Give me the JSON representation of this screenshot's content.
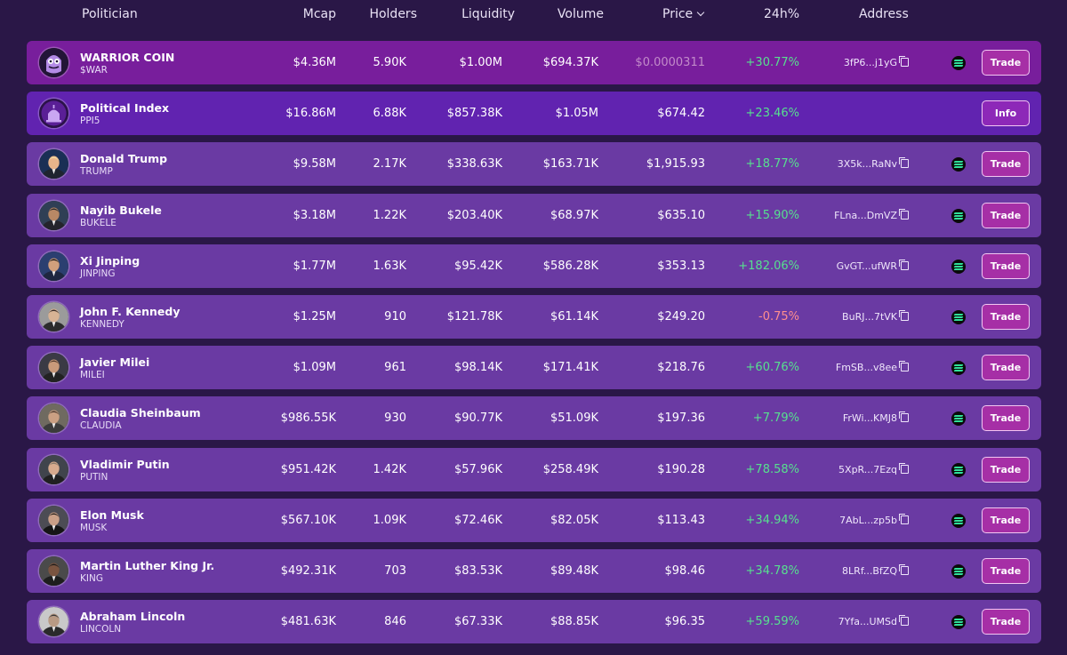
{
  "columns": {
    "politician": "Politician",
    "mcap": "Mcap",
    "holders": "Holders",
    "liquidity": "Liquidity",
    "volume": "Volume",
    "price": "Price",
    "change": "24h%",
    "address": "Address"
  },
  "rows": [
    {
      "name": "WARRIOR COIN",
      "ticker": "$WAR",
      "mcap": "$4.36M",
      "holders": "5.90K",
      "liquidity": "$1.00M",
      "volume": "$694.37K",
      "price": "$0.0000311",
      "change": "+30.77%",
      "address": "3fP6...j1yG",
      "action": "Trade",
      "avatar": "warrior-avatar"
    },
    {
      "name": "Political Index",
      "ticker": "PPI5",
      "mcap": "$16.86M",
      "holders": "6.88K",
      "liquidity": "$857.38K",
      "volume": "$1.05M",
      "price": "$674.42",
      "change": "+23.46%",
      "address": "",
      "action": "Info",
      "avatar": "capitol-avatar"
    },
    {
      "name": "Donald Trump",
      "ticker": "TRUMP",
      "mcap": "$9.58M",
      "holders": "2.17K",
      "liquidity": "$338.63K",
      "volume": "$163.71K",
      "price": "$1,915.93",
      "change": "+18.77%",
      "address": "3X5k...RaNv",
      "action": "Trade",
      "avatar": "portrait"
    },
    {
      "name": "Nayib Bukele",
      "ticker": "BUKELE",
      "mcap": "$3.18M",
      "holders": "1.22K",
      "liquidity": "$203.40K",
      "volume": "$68.97K",
      "price": "$635.10",
      "change": "+15.90%",
      "address": "FLna...DmVZ",
      "action": "Trade",
      "avatar": "portrait"
    },
    {
      "name": "Xi Jinping",
      "ticker": "JINPING",
      "mcap": "$1.77M",
      "holders": "1.63K",
      "liquidity": "$95.42K",
      "volume": "$586.28K",
      "price": "$353.13",
      "change": "+182.06%",
      "address": "GvGT...ufWR",
      "action": "Trade",
      "avatar": "portrait"
    },
    {
      "name": "John F. Kennedy",
      "ticker": "KENNEDY",
      "mcap": "$1.25M",
      "holders": "910",
      "liquidity": "$121.78K",
      "volume": "$61.14K",
      "price": "$249.20",
      "change": "-0.75%",
      "address": "BuRJ...7tVK",
      "action": "Trade",
      "avatar": "portrait"
    },
    {
      "name": "Javier Milei",
      "ticker": "MILEI",
      "mcap": "$1.09M",
      "holders": "961",
      "liquidity": "$98.14K",
      "volume": "$171.41K",
      "price": "$218.76",
      "change": "+60.76%",
      "address": "FmSB...v8ee",
      "action": "Trade",
      "avatar": "portrait"
    },
    {
      "name": "Claudia Sheinbaum",
      "ticker": "CLAUDIA",
      "mcap": "$986.55K",
      "holders": "930",
      "liquidity": "$90.77K",
      "volume": "$51.09K",
      "price": "$197.36",
      "change": "+7.79%",
      "address": "FrWi...KMJ8",
      "action": "Trade",
      "avatar": "portrait"
    },
    {
      "name": "Vladimir Putin",
      "ticker": "PUTIN",
      "mcap": "$951.42K",
      "holders": "1.42K",
      "liquidity": "$57.96K",
      "volume": "$258.49K",
      "price": "$190.28",
      "change": "+78.58%",
      "address": "5XpR...7Ezq",
      "action": "Trade",
      "avatar": "portrait"
    },
    {
      "name": "Elon Musk",
      "ticker": "MUSK",
      "mcap": "$567.10K",
      "holders": "1.09K",
      "liquidity": "$72.46K",
      "volume": "$82.05K",
      "price": "$113.43",
      "change": "+34.94%",
      "address": "7AbL...zp5b",
      "action": "Trade",
      "avatar": "portrait"
    },
    {
      "name": "Martin Luther King Jr.",
      "ticker": "KING",
      "mcap": "$492.31K",
      "holders": "703",
      "liquidity": "$83.53K",
      "volume": "$89.48K",
      "price": "$98.46",
      "change": "+34.78%",
      "address": "8LRf...BfZQ",
      "action": "Trade",
      "avatar": "portrait"
    },
    {
      "name": "Abraham Lincoln",
      "ticker": "LINCOLN",
      "mcap": "$481.63K",
      "holders": "846",
      "liquidity": "$67.33K",
      "volume": "$88.85K",
      "price": "$96.35",
      "change": "+59.59%",
      "address": "7Yfa...UMSd",
      "action": "Trade",
      "avatar": "portrait"
    }
  ],
  "colors": {
    "background": "#2a1747",
    "row": "#6a3aa3",
    "row_warrior": "#781e9c",
    "row_index": "#6123b0",
    "positive": "#57e08f",
    "negative": "#ff8e8e",
    "button": "#a62fa6"
  },
  "icons": {
    "sort": "chevron-down-icon",
    "copy": "copy-icon",
    "chain": "solana-icon"
  }
}
